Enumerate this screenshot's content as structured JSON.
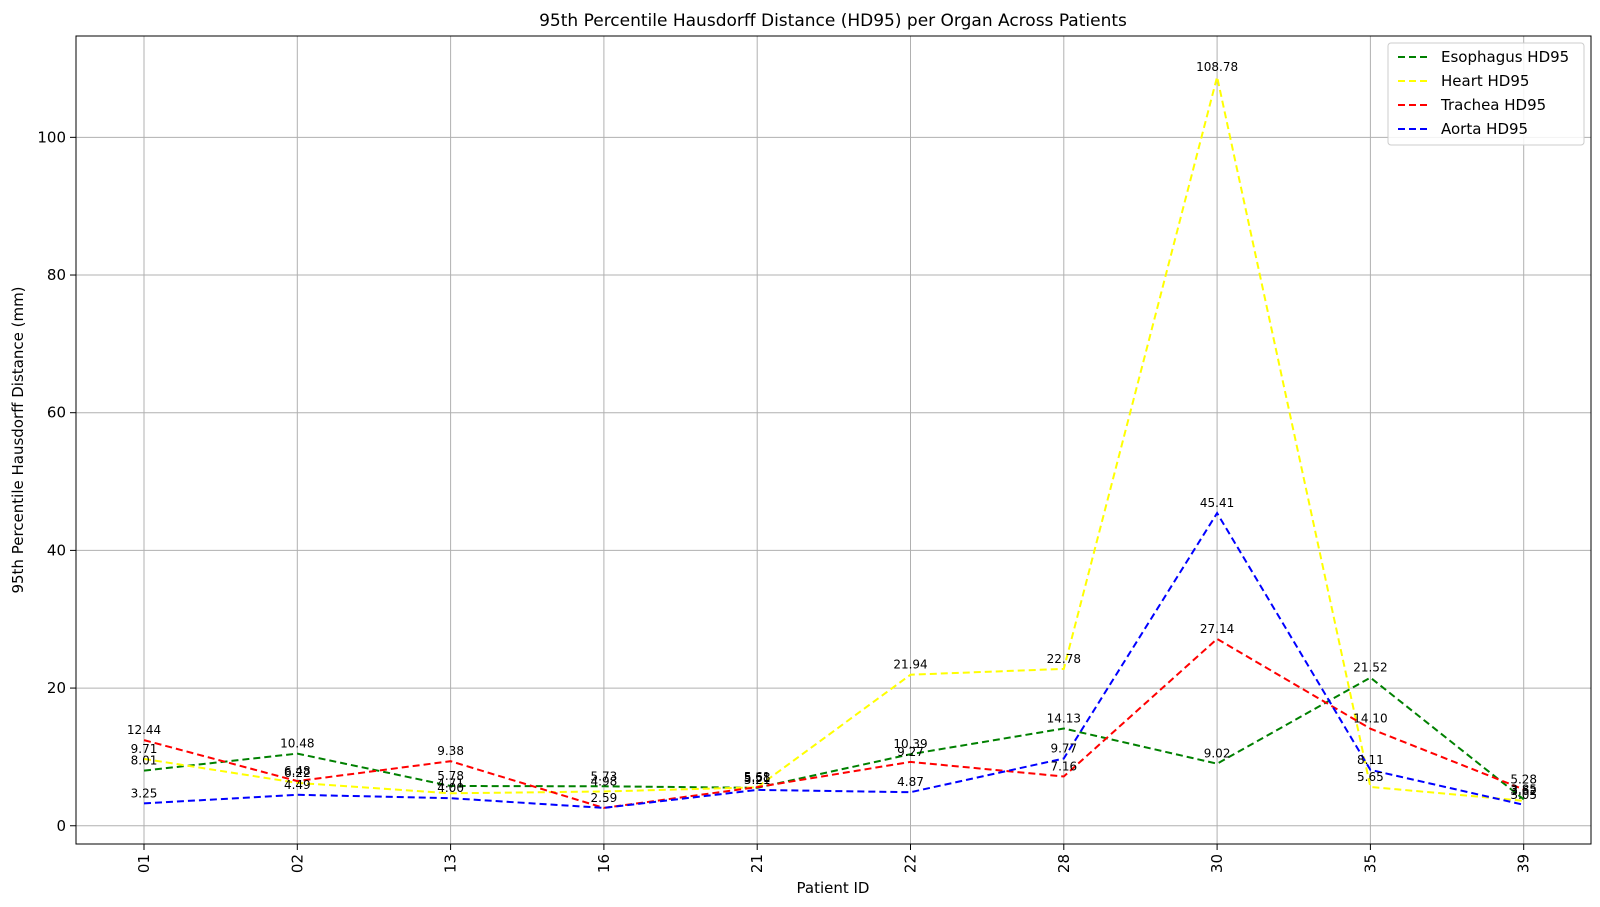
{
  "chart_data": {
    "type": "line",
    "title": "95th Percentile Hausdorff Distance (HD95) per Organ Across Patients",
    "xlabel": "Patient ID",
    "ylabel": "95th Percentile Hausdorff Distance (mm)",
    "categories": [
      "01",
      "02",
      "13",
      "16",
      "21",
      "22",
      "28",
      "30",
      "35",
      "39"
    ],
    "ylim": [
      -2.65,
      114.72
    ],
    "yticks": [
      0,
      20,
      40,
      60,
      80,
      100
    ],
    "grid": true,
    "legend_position": "top-right",
    "line_style": "dashed",
    "series": [
      {
        "name": "Esophagus HD95",
        "color": "#008000",
        "values": [
          8.01,
          10.48,
          5.78,
          5.73,
          5.51,
          10.39,
          14.13,
          9.02,
          21.52,
          3.85
        ],
        "labels": [
          "8.01",
          "10.48",
          "5.78",
          "5.73",
          "5.51",
          "10.39",
          "14.13",
          "9.02",
          "21.52",
          "3.85"
        ]
      },
      {
        "name": "Heart HD95",
        "color": "#ffff00",
        "values": [
          9.71,
          6.22,
          4.71,
          4.98,
          5.58,
          21.94,
          22.78,
          108.78,
          5.65,
          3.62
        ],
        "labels": [
          "9.71",
          "6.22",
          "4.71",
          "4.98",
          "5.58",
          "21.94",
          "22.78",
          "108.78",
          "5.65",
          "3.62"
        ]
      },
      {
        "name": "Trachea HD95",
        "color": "#ff0000",
        "values": [
          12.44,
          6.48,
          9.38,
          2.59,
          5.61,
          9.27,
          7.16,
          27.14,
          14.1,
          5.28
        ],
        "labels": [
          "12.44",
          "6.48",
          "9.38",
          "",
          "5.61",
          "9.27",
          "7.16",
          "27.14",
          "14.10",
          "5.28"
        ]
      },
      {
        "name": "Aorta HD95",
        "color": "#0000ff",
        "values": [
          3.25,
          4.49,
          4.0,
          2.59,
          5.21,
          4.87,
          9.77,
          45.41,
          8.11,
          3.05
        ],
        "labels": [
          "3.25",
          "4.49",
          "4.00",
          "2.59",
          "5.21",
          "4.87",
          "9.77",
          "45.41",
          "8.11",
          "3.05"
        ]
      }
    ]
  }
}
